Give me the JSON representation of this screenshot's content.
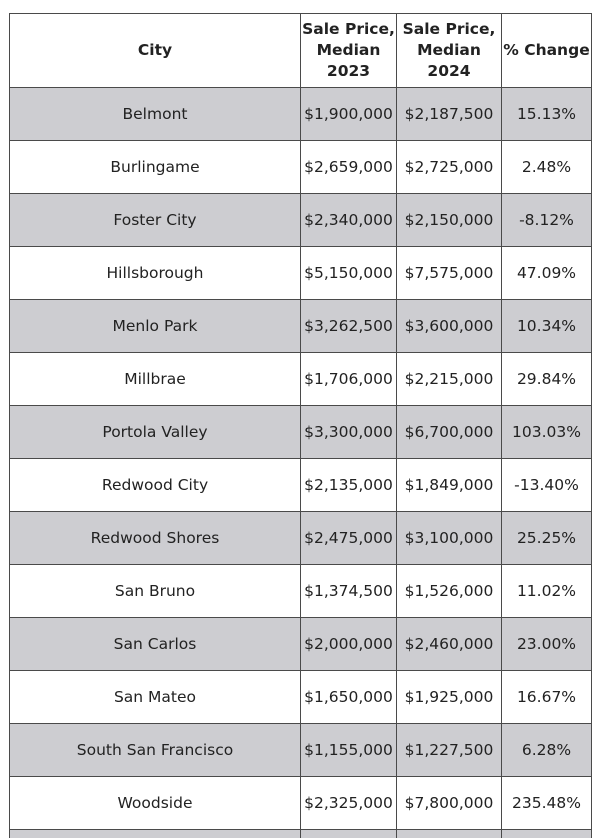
{
  "table": {
    "headers": {
      "city": "City",
      "price_2023": "Sale Price, Median 2023",
      "price_2024": "Sale Price, Median 2024",
      "change": "% Change"
    },
    "rows": [
      {
        "city": "Belmont",
        "price_2023": "$1,900,000",
        "price_2024": "$2,187,500",
        "change": "15.13%"
      },
      {
        "city": "Burlingame",
        "price_2023": "$2,659,000",
        "price_2024": "$2,725,000",
        "change": "2.48%"
      },
      {
        "city": "Foster City",
        "price_2023": "$2,340,000",
        "price_2024": "$2,150,000",
        "change": "-8.12%"
      },
      {
        "city": "Hillsborough",
        "price_2023": "$5,150,000",
        "price_2024": "$7,575,000",
        "change": "47.09%"
      },
      {
        "city": "Menlo Park",
        "price_2023": "$3,262,500",
        "price_2024": "$3,600,000",
        "change": "10.34%"
      },
      {
        "city": "Millbrae",
        "price_2023": "$1,706,000",
        "price_2024": "$2,215,000",
        "change": "29.84%"
      },
      {
        "city": "Portola Valley",
        "price_2023": "$3,300,000",
        "price_2024": "$6,700,000",
        "change": "103.03%"
      },
      {
        "city": "Redwood City",
        "price_2023": "$2,135,000",
        "price_2024": "$1,849,000",
        "change": "-13.40%"
      },
      {
        "city": "Redwood Shores",
        "price_2023": "$2,475,000",
        "price_2024": "$3,100,000",
        "change": "25.25%"
      },
      {
        "city": "San Bruno",
        "price_2023": "$1,374,500",
        "price_2024": "$1,526,000",
        "change": "11.02%"
      },
      {
        "city": "San Carlos",
        "price_2023": "$2,000,000",
        "price_2024": "$2,460,000",
        "change": "23.00%"
      },
      {
        "city": "San Mateo",
        "price_2023": "$1,650,000",
        "price_2024": "$1,925,000",
        "change": "16.67%"
      },
      {
        "city": "South San Francisco",
        "price_2023": "$1,155,000",
        "price_2024": "$1,227,500",
        "change": "6.28%"
      },
      {
        "city": "Woodside",
        "price_2023": "$2,325,000",
        "price_2024": "$7,800,000",
        "change": "235.48%"
      }
    ]
  },
  "colors": {
    "shaded_row": "#cdcdd1",
    "plain_row": "#ffffff",
    "border": "#4a4a4a"
  }
}
